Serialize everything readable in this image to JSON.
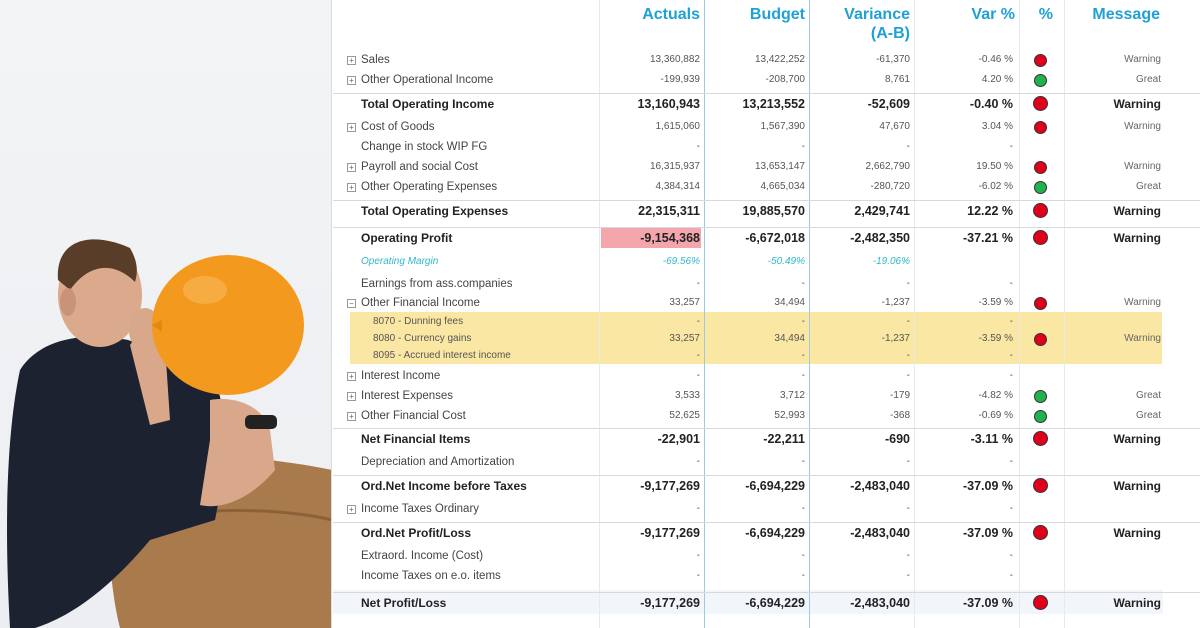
{
  "columns": {
    "actuals": "Actuals",
    "budget": "Budget",
    "variance_line1": "Variance",
    "variance_line2": "(A-B)",
    "var_pct": "Var %",
    "pct": "%",
    "message": "Message"
  },
  "colors": {
    "header": "#1fa0d6",
    "red": "#e0001b",
    "green": "#22b14c",
    "highlight": "#fbe7a4",
    "negative_cell": "#f4a6ad"
  },
  "rows": [
    {
      "label": "Sales",
      "actuals": "13,360,882",
      "budget": "13,422,252",
      "variance": "-61,370",
      "var_pct": "-0.46 %",
      "status": "red",
      "message": "Warning"
    },
    {
      "label": "Other Operational Income",
      "actuals": "-199,939",
      "budget": "-208,700",
      "variance": "8,761",
      "var_pct": "4.20 %",
      "status": "green",
      "message": "Great"
    },
    {
      "label": "Total Operating Income",
      "actuals": "13,160,943",
      "budget": "13,213,552",
      "variance": "-52,609",
      "var_pct": "-0.40 %",
      "status": "red",
      "message": "Warning"
    },
    {
      "label": "Cost of Goods",
      "actuals": "1,615,060",
      "budget": "1,567,390",
      "variance": "47,670",
      "var_pct": "3.04 %",
      "status": "red",
      "message": "Warning"
    },
    {
      "label": "Change in stock WIP FG",
      "actuals": "-",
      "budget": "-",
      "variance": "-",
      "var_pct": "-",
      "status": "",
      "message": ""
    },
    {
      "label": "Payroll and social Cost",
      "actuals": "16,315,937",
      "budget": "13,653,147",
      "variance": "2,662,790",
      "var_pct": "19.50 %",
      "status": "red",
      "message": "Warning"
    },
    {
      "label": "Other Operating Expenses",
      "actuals": "4,384,314",
      "budget": "4,665,034",
      "variance": "-280,720",
      "var_pct": "-6.02 %",
      "status": "green",
      "message": "Great"
    },
    {
      "label": "Total Operating Expenses",
      "actuals": "22,315,311",
      "budget": "19,885,570",
      "variance": "2,429,741",
      "var_pct": "12.22 %",
      "status": "red",
      "message": "Warning"
    },
    {
      "label": "Operating Profit",
      "actuals": "-9,154,368",
      "budget": "-6,672,018",
      "variance": "-2,482,350",
      "var_pct": "-37.21 %",
      "status": "red",
      "message": "Warning"
    },
    {
      "label": "Operating Margin",
      "actuals": "-69.56%",
      "budget": "-50.49%",
      "variance": "-19.06%",
      "var_pct": "",
      "status": "",
      "message": ""
    },
    {
      "label": "Earnings from ass.companies",
      "actuals": "-",
      "budget": "-",
      "variance": "-",
      "var_pct": "-",
      "status": "",
      "message": ""
    },
    {
      "label": "Other Financial Income",
      "actuals": "33,257",
      "budget": "34,494",
      "variance": "-1,237",
      "var_pct": "-3.59 %",
      "status": "red",
      "message": "Warning"
    },
    {
      "label": "8070 - Dunning fees",
      "actuals": "-",
      "budget": "-",
      "variance": "-",
      "var_pct": "-",
      "status": "",
      "message": ""
    },
    {
      "label": "8080 - Currency gains",
      "actuals": "33,257",
      "budget": "34,494",
      "variance": "-1,237",
      "var_pct": "-3.59 %",
      "status": "red",
      "message": "Warning"
    },
    {
      "label": "8095 - Accrued interest income",
      "actuals": "-",
      "budget": "-",
      "variance": "-",
      "var_pct": "-",
      "status": "",
      "message": ""
    },
    {
      "label": "Interest Income",
      "actuals": "-",
      "budget": "-",
      "variance": "-",
      "var_pct": "-",
      "status": "",
      "message": ""
    },
    {
      "label": "Interest Expenses",
      "actuals": "3,533",
      "budget": "3,712",
      "variance": "-179",
      "var_pct": "-4.82 %",
      "status": "green",
      "message": "Great"
    },
    {
      "label": "Other Financial Cost",
      "actuals": "52,625",
      "budget": "52,993",
      "variance": "-368",
      "var_pct": "-0.69 %",
      "status": "green",
      "message": "Great"
    },
    {
      "label": "Net Financial Items",
      "actuals": "-22,901",
      "budget": "-22,211",
      "variance": "-690",
      "var_pct": "-3.11 %",
      "status": "red",
      "message": "Warning"
    },
    {
      "label": "Depreciation and Amortization",
      "actuals": "-",
      "budget": "-",
      "variance": "-",
      "var_pct": "-",
      "status": "",
      "message": ""
    },
    {
      "label": "Ord.Net Income before Taxes",
      "actuals": "-9,177,269",
      "budget": "-6,694,229",
      "variance": "-2,483,040",
      "var_pct": "-37.09 %",
      "status": "red",
      "message": "Warning"
    },
    {
      "label": "Income Taxes Ordinary",
      "actuals": "-",
      "budget": "-",
      "variance": "-",
      "var_pct": "-",
      "status": "",
      "message": ""
    },
    {
      "label": "Ord.Net Profit/Loss",
      "actuals": "-9,177,269",
      "budget": "-6,694,229",
      "variance": "-2,483,040",
      "var_pct": "-37.09 %",
      "status": "red",
      "message": "Warning"
    },
    {
      "label": "Extraord. Income (Cost)",
      "actuals": "-",
      "budget": "-",
      "variance": "-",
      "var_pct": "-",
      "status": "",
      "message": ""
    },
    {
      "label": "Income Taxes on e.o. items",
      "actuals": "-",
      "budget": "-",
      "variance": "-",
      "var_pct": "-",
      "status": "",
      "message": ""
    },
    {
      "label": "Net Profit/Loss",
      "actuals": "-9,177,269",
      "budget": "-6,694,229",
      "variance": "-2,483,040",
      "var_pct": "-37.09 %",
      "status": "red",
      "message": "Warning"
    }
  ]
}
